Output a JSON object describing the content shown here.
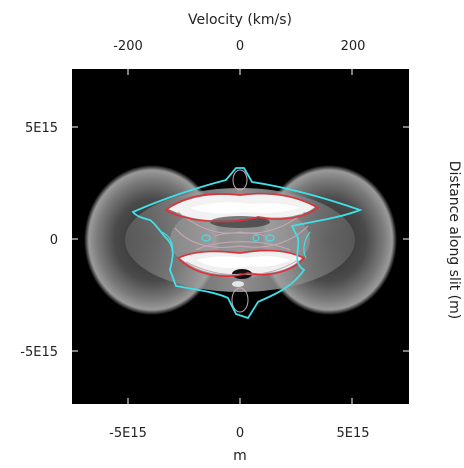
{
  "chart_data": {
    "type": "heatmap",
    "title": "",
    "colormap": "grayscale",
    "background_color": "#000000",
    "contour_colors": {
      "outer": "#40e0e8",
      "inner": "#e0303a",
      "interior": "#c8a8b8"
    },
    "top_axis": {
      "label": "Velocity (km/s)",
      "ticks": [
        {
          "value": -200,
          "label": "-200"
        },
        {
          "value": 0,
          "label": "0"
        },
        {
          "value": 200,
          "label": "200"
        }
      ],
      "range": [
        -299,
        299
      ]
    },
    "bottom_axis": {
      "label": "m",
      "ticks": [
        {
          "value": -5000000000000000.0,
          "label": "-5E15"
        },
        {
          "value": 0,
          "label": "0"
        },
        {
          "value": 5000000000000000.0,
          "label": "5E15"
        }
      ],
      "range": [
        -1e+16,
        1e+16
      ]
    },
    "left_axis": {
      "label": "",
      "ticks": [
        {
          "value": 5000000000000000.0,
          "label": "5E15"
        },
        {
          "value": 0,
          "label": "0"
        },
        {
          "value": -5000000000000000.0,
          "label": "-5E15"
        }
      ],
      "range": [
        -1.48e+16,
        1.48e+16
      ]
    },
    "right_axis": {
      "label": "Distance along slit (m)"
    },
    "grid": false
  }
}
